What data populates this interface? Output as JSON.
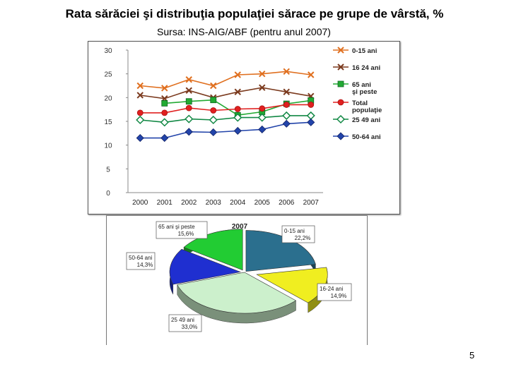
{
  "slide": {
    "title": "Rata sărăciei şi distribuţia populaţiei sărace pe grupe de vârstă, %",
    "subtitle": "Sursa: INS-AIG/ABF (pentru anul 2007)",
    "page_number": "5"
  },
  "chart_data": [
    {
      "type": "line",
      "x": [
        "2000",
        "2001",
        "2002",
        "2003",
        "2004",
        "2005",
        "2006",
        "2007"
      ],
      "ylim": [
        0,
        30
      ],
      "yticks": [
        "0",
        "5",
        "10",
        "15",
        "20",
        "25",
        "30"
      ],
      "grid": false,
      "legend": "right",
      "series": [
        {
          "name": "0-15 ani",
          "color": "#e07020",
          "marker": "x",
          "values": [
            22.5,
            22,
            23.8,
            22.5,
            24.8,
            25,
            25.5,
            24.8
          ]
        },
        {
          "name": "16 24 ani",
          "color": "#7b3a1e",
          "marker": "x",
          "values": [
            20.5,
            19.8,
            21.5,
            20,
            21.2,
            22.1,
            21.2,
            20.3
          ]
        },
        {
          "name": "65 ani şi peste",
          "color": "#22aa33",
          "marker": "square",
          "values": [
            null,
            18.8,
            19.2,
            19.5,
            16.3,
            17,
            18.7,
            19.4
          ]
        },
        {
          "name": "Total populaţie",
          "color": "#e02020",
          "marker": "circle",
          "values": [
            16.8,
            16.8,
            17.8,
            17.3,
            17.6,
            17.7,
            18.5,
            18.5
          ]
        },
        {
          "name": "25 49 ani",
          "color": "#118844",
          "marker": "diamond-open",
          "values": [
            15.3,
            14.8,
            15.5,
            15.3,
            15.8,
            15.8,
            16.2,
            16.2
          ]
        },
        {
          "name": "50-64 ani",
          "color": "#2244aa",
          "marker": "diamond",
          "values": [
            11.5,
            11.5,
            12.8,
            12.7,
            13,
            13.3,
            14.5,
            14.8
          ]
        }
      ]
    },
    {
      "type": "pie",
      "title": "2007",
      "labels": [
        "0-15 ani",
        "16-24 ani",
        "25 49 ani",
        "50-64 ani",
        "65 ani şi peste"
      ],
      "values": [
        22.2,
        14.9,
        33.0,
        14.3,
        15.6
      ],
      "value_labels": [
        "22,2%",
        "14,9%",
        "33,0%",
        "14,3%",
        "15,6%"
      ],
      "colors": [
        "#2b6f8e",
        "#f0ee20",
        "#ccf0cc",
        "#1f2fd0",
        "#22cc33"
      ]
    }
  ]
}
